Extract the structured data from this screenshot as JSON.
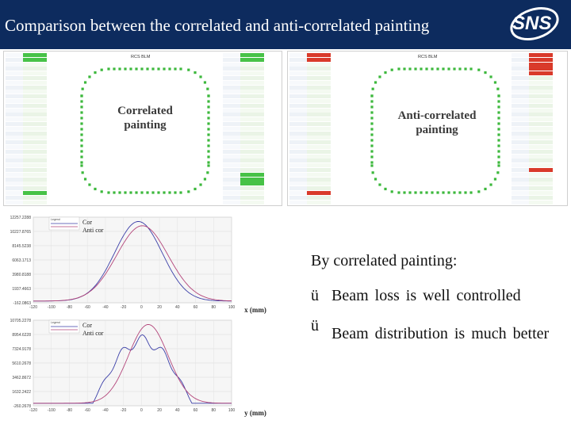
{
  "title": "Comparison between the correlated and anti-correlated painting",
  "logo": {
    "text": "SNS"
  },
  "blm_panels": [
    {
      "ring_label": "RCS BLM",
      "caption_line1": "Correlated",
      "caption_line2": "painting",
      "highlight_color": "#2db82d"
    },
    {
      "ring_label": "RCS BLM",
      "caption_line1": "Anti-correlated",
      "caption_line2": "painting",
      "highlight_color": "#d92a2a"
    }
  ],
  "plots": [
    {
      "legend_title": "Legend",
      "series": [
        "Cor",
        "Anti cor"
      ],
      "xlabel": "x (mm)",
      "y_ticks": [
        "12257.2288",
        "10227.8765",
        "8145.5238",
        "6063.1713",
        "3980.8188",
        "1937.4663",
        "-162.0863"
      ],
      "x_ticks": [
        "-120",
        "-100",
        "-80",
        "-60",
        "-40",
        "-20",
        "0",
        "20",
        "40",
        "60",
        "80",
        "100"
      ],
      "colors": {
        "Cor": "#3b3fa8",
        "Anti cor": "#b3457a"
      }
    },
    {
      "legend_title": "Legend",
      "series": [
        "Cor",
        "Anti cor"
      ],
      "xlabel": "y (mm)",
      "y_ticks": [
        "10705.2278",
        "8954.6228",
        "7324.9178",
        "5610.2678",
        "3462.8672",
        "1632.2422",
        "-260.2678"
      ],
      "x_ticks": [
        "-120",
        "-100",
        "-80",
        "-60",
        "-40",
        "-20",
        "0",
        "20",
        "40",
        "60",
        "80",
        "100"
      ],
      "colors": {
        "Cor": "#3b3fa8",
        "Anti cor": "#b3457a"
      }
    }
  ],
  "notes": {
    "heading": "By correlated painting:",
    "check_glyph": "ü",
    "items": [
      "Beam loss is well controlled",
      "Beam distribution is much better"
    ]
  }
}
